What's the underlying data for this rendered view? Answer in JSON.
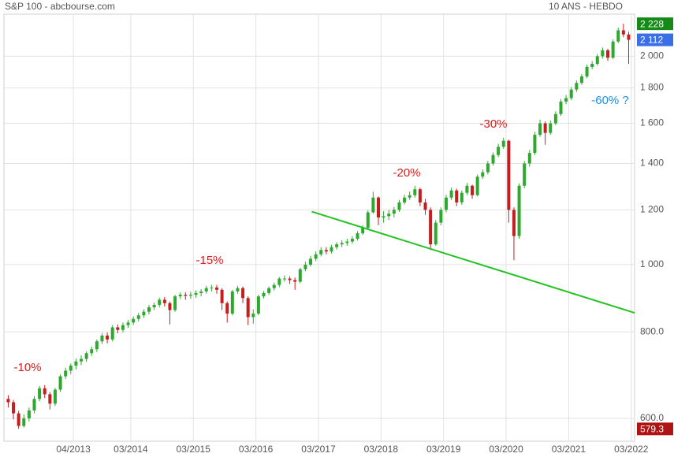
{
  "chart_data": {
    "type": "candlestick",
    "title": "S&P 100 - abcbourse.com",
    "subtitle": "10 ANS - HEBDO",
    "log_scale": true,
    "grid": true,
    "up_color": "#2fa82f",
    "down_color": "#c41e1e",
    "xlim": [
      2012.14,
      2022.22
    ],
    "xticks": [
      {
        "value": 2013.25,
        "label": "04/2013"
      },
      {
        "value": 2014.167,
        "label": "03/2014"
      },
      {
        "value": 2015.167,
        "label": "03/2015"
      },
      {
        "value": 2016.167,
        "label": "03/2016"
      },
      {
        "value": 2017.167,
        "label": "03/2017"
      },
      {
        "value": 2018.167,
        "label": "03/2018"
      },
      {
        "value": 2019.167,
        "label": "03/2019"
      },
      {
        "value": 2020.167,
        "label": "03/2020"
      },
      {
        "value": 2021.167,
        "label": "03/2021"
      },
      {
        "value": 2022.167,
        "label": "03/2022"
      }
    ],
    "ylim": [
      556,
      2300
    ],
    "yticks": [
      {
        "value": 600,
        "label": "600.0"
      },
      {
        "value": 800,
        "label": "800.0"
      },
      {
        "value": 1000,
        "label": "1 000"
      },
      {
        "value": 1200,
        "label": "1 200"
      },
      {
        "value": 1400,
        "label": "1 400"
      },
      {
        "value": 1600,
        "label": "1 600"
      },
      {
        "value": 1800,
        "label": "1 800"
      },
      {
        "value": 2000,
        "label": "2 000"
      }
    ],
    "x": [
      "2012-03",
      "2012-04",
      "2012-05",
      "2012-06",
      "2012-07",
      "2012-08",
      "2012-09",
      "2012-10",
      "2012-11",
      "2012-12",
      "2013-01",
      "2013-02",
      "2013-03",
      "2013-04",
      "2013-05",
      "2013-06",
      "2013-07",
      "2013-08",
      "2013-09",
      "2013-10",
      "2013-11",
      "2013-12",
      "2014-01",
      "2014-02",
      "2014-03",
      "2014-04",
      "2014-05",
      "2014-06",
      "2014-07",
      "2014-08",
      "2014-09",
      "2014-10",
      "2014-11",
      "2014-12",
      "2015-01",
      "2015-02",
      "2015-03",
      "2015-04",
      "2015-05",
      "2015-06",
      "2015-07",
      "2015-08",
      "2015-09",
      "2015-10",
      "2015-11",
      "2015-12",
      "2016-01",
      "2016-02",
      "2016-03",
      "2016-04",
      "2016-05",
      "2016-06",
      "2016-07",
      "2016-08",
      "2016-09",
      "2016-10",
      "2016-11",
      "2016-12",
      "2017-01",
      "2017-02",
      "2017-03",
      "2017-04",
      "2017-05",
      "2017-06",
      "2017-07",
      "2017-08",
      "2017-09",
      "2017-10",
      "2017-11",
      "2017-12",
      "2018-01",
      "2018-02",
      "2018-03",
      "2018-04",
      "2018-05",
      "2018-06",
      "2018-07",
      "2018-08",
      "2018-09",
      "2018-10",
      "2018-11",
      "2018-12",
      "2019-01",
      "2019-02",
      "2019-03",
      "2019-04",
      "2019-05",
      "2019-06",
      "2019-07",
      "2019-08",
      "2019-09",
      "2019-10",
      "2019-11",
      "2019-12",
      "2020-01",
      "2020-02",
      "2020-03",
      "2020-04",
      "2020-05",
      "2020-06",
      "2020-07",
      "2020-08",
      "2020-09",
      "2020-10",
      "2020-11",
      "2020-12",
      "2021-01",
      "2021-02",
      "2021-03",
      "2021-04",
      "2021-05",
      "2021-06",
      "2021-07",
      "2021-08",
      "2021-09",
      "2021-10",
      "2021-11",
      "2021-12",
      "2022-01",
      "2022-02"
    ],
    "open": [
      640,
      633,
      610,
      585,
      600,
      616,
      640,
      663,
      650,
      630,
      660,
      690,
      703,
      715,
      725,
      731,
      745,
      755,
      775,
      790,
      780,
      812,
      805,
      818,
      825,
      835,
      845,
      855,
      868,
      875,
      890,
      880,
      860,
      900,
      905,
      902,
      905,
      910,
      915,
      925,
      927,
      920,
      880,
      850,
      915,
      925,
      895,
      840,
      850,
      900,
      910,
      925,
      935,
      955,
      955,
      950,
      945,
      985,
      1000,
      1020,
      1035,
      1050,
      1045,
      1060,
      1070,
      1075,
      1080,
      1090,
      1110,
      1130,
      1190,
      1250,
      1170,
      1175,
      1185,
      1200,
      1230,
      1250,
      1260,
      1285,
      1230,
      1200,
      1070,
      1150,
      1200,
      1250,
      1280,
      1230,
      1270,
      1300,
      1260,
      1340,
      1360,
      1400,
      1440,
      1480,
      1510,
      1200,
      1100,
      1300,
      1400,
      1450,
      1540,
      1600,
      1550,
      1600,
      1650,
      1720,
      1740,
      1790,
      1830,
      1870,
      1930,
      1950,
      2000,
      2040,
      1990,
      2100,
      2180,
      2150
    ],
    "high": [
      648,
      638,
      615,
      608,
      622,
      646,
      668,
      670,
      655,
      664,
      694,
      710,
      720,
      732,
      740,
      750,
      762,
      780,
      796,
      798,
      818,
      820,
      825,
      832,
      842,
      852,
      862,
      875,
      882,
      896,
      898,
      885,
      905,
      912,
      912,
      914,
      918,
      922,
      932,
      935,
      935,
      925,
      885,
      920,
      932,
      930,
      900,
      862,
      905,
      916,
      930,
      942,
      960,
      965,
      962,
      958,
      990,
      1010,
      1030,
      1045,
      1060,
      1060,
      1068,
      1078,
      1085,
      1090,
      1100,
      1118,
      1140,
      1198,
      1275,
      1255,
      1195,
      1200,
      1212,
      1240,
      1262,
      1275,
      1300,
      1292,
      1245,
      1210,
      1160,
      1210,
      1262,
      1292,
      1288,
      1280,
      1312,
      1305,
      1350,
      1372,
      1412,
      1452,
      1495,
      1525,
      1515,
      1210,
      1310,
      1412,
      1465,
      1555,
      1620,
      1610,
      1615,
      1665,
      1735,
      1758,
      1805,
      1845,
      1885,
      1945,
      1968,
      2015,
      2058,
      2050,
      2115,
      2200,
      2228,
      2170
    ],
    "low": [
      622,
      598,
      579.3,
      582,
      594,
      610,
      635,
      642,
      618,
      625,
      655,
      684,
      695,
      706,
      716,
      724,
      738,
      748,
      768,
      770,
      775,
      796,
      798,
      810,
      818,
      828,
      838,
      848,
      860,
      868,
      870,
      820,
      855,
      892,
      890,
      893,
      896,
      900,
      908,
      915,
      908,
      860,
      825,
      845,
      908,
      880,
      818,
      822,
      845,
      894,
      904,
      918,
      928,
      945,
      938,
      920,
      940,
      978,
      994,
      1012,
      1028,
      1035,
      1038,
      1052,
      1060,
      1065,
      1072,
      1084,
      1104,
      1125,
      1185,
      1140,
      1150,
      1160,
      1170,
      1192,
      1222,
      1240,
      1250,
      1215,
      1180,
      1050,
      1065,
      1140,
      1190,
      1240,
      1215,
      1220,
      1260,
      1245,
      1255,
      1330,
      1350,
      1390,
      1430,
      1470,
      1150,
      1015,
      1090,
      1290,
      1385,
      1440,
      1530,
      1490,
      1540,
      1590,
      1640,
      1705,
      1728,
      1775,
      1818,
      1858,
      1915,
      1938,
      1985,
      1970,
      1980,
      2090,
      2130,
      1950
    ],
    "close": [
      633,
      610,
      585,
      600,
      616,
      640,
      663,
      650,
      630,
      660,
      690,
      703,
      715,
      725,
      731,
      745,
      755,
      775,
      790,
      780,
      812,
      805,
      818,
      825,
      835,
      845,
      855,
      868,
      875,
      890,
      880,
      860,
      900,
      905,
      902,
      905,
      910,
      915,
      925,
      927,
      920,
      880,
      850,
      915,
      925,
      895,
      840,
      850,
      900,
      910,
      925,
      935,
      955,
      955,
      950,
      945,
      985,
      1000,
      1020,
      1035,
      1050,
      1045,
      1060,
      1070,
      1075,
      1080,
      1090,
      1110,
      1130,
      1190,
      1250,
      1170,
      1175,
      1185,
      1200,
      1230,
      1250,
      1260,
      1285,
      1230,
      1200,
      1070,
      1150,
      1200,
      1250,
      1280,
      1230,
      1270,
      1300,
      1260,
      1340,
      1360,
      1400,
      1440,
      1480,
      1510,
      1200,
      1100,
      1300,
      1400,
      1450,
      1540,
      1600,
      1550,
      1600,
      1650,
      1720,
      1740,
      1790,
      1830,
      1870,
      1930,
      1950,
      2000,
      2040,
      1990,
      2100,
      2180,
      2150,
      2112
    ],
    "trendline": {
      "color": "#22c322",
      "x": [
        2017.06,
        2022.22
      ],
      "y": [
        1193,
        852
      ]
    },
    "price_labels": [
      {
        "value": 2228,
        "label": "2 228",
        "color": "#168a16"
      },
      {
        "value": 2112,
        "label": "2 112",
        "color": "#3b6fe6"
      },
      {
        "value": 579.3,
        "label": "579.3",
        "color": "#b01313"
      }
    ],
    "annotations": [
      {
        "text": "-10%",
        "color": "#e01818"
      },
      {
        "text": "-15%",
        "color": "#e01818"
      },
      {
        "text": "-20%",
        "color": "#e01818"
      },
      {
        "text": "-30%",
        "color": "#e01818"
      },
      {
        "text": "-60% ?",
        "color": "#1f8ee0"
      }
    ]
  }
}
